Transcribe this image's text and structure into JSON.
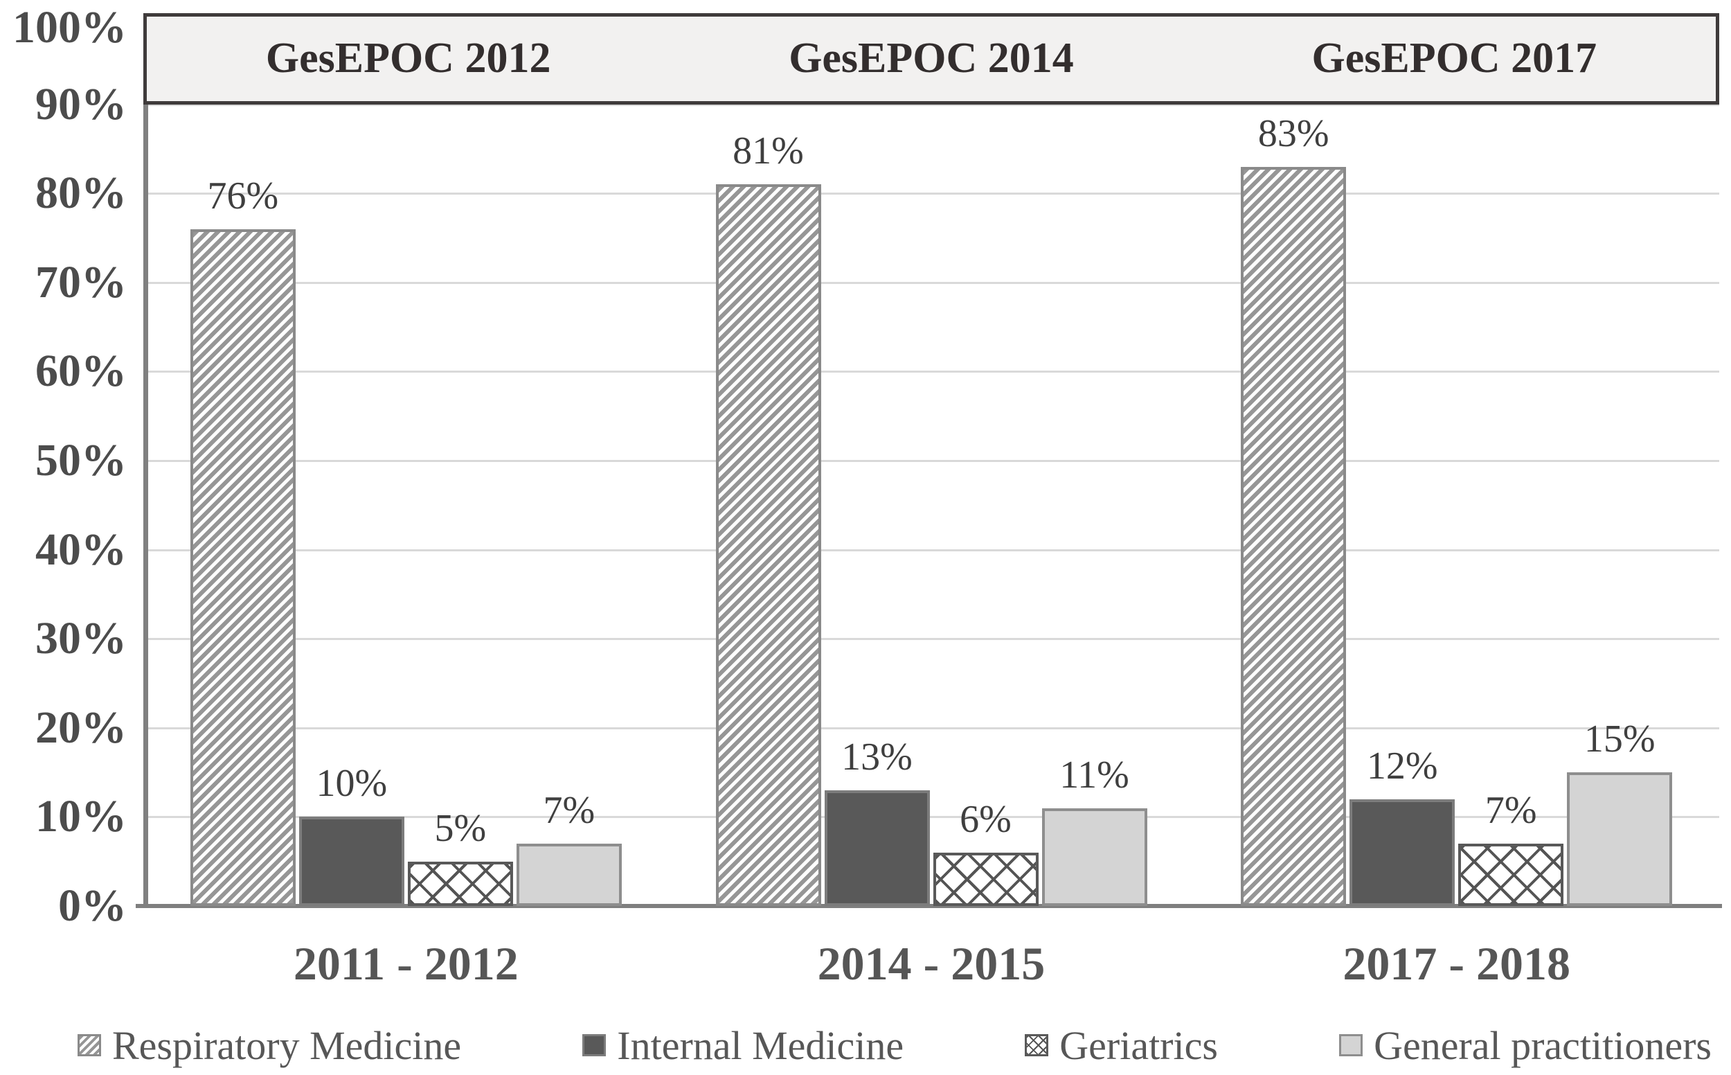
{
  "chart_data": {
    "type": "bar",
    "header_bands": [
      "GesEPOC 2012",
      "GesEPOC 2014",
      "GesEPOC 2017"
    ],
    "categories": [
      "2011 - 2012",
      "2014 - 2015",
      "2017 - 2018"
    ],
    "series": [
      {
        "name": "Respiratory Medicine",
        "pattern": "diagonal-hatch",
        "values": [
          76,
          81,
          83
        ],
        "labels": [
          "76%",
          "81%",
          "83%"
        ]
      },
      {
        "name": "Internal Medicine",
        "pattern": "solid-dark",
        "values": [
          10,
          13,
          12
        ],
        "labels": [
          "10%",
          "13%",
          "12%"
        ]
      },
      {
        "name": "Geriatrics",
        "pattern": "cross-hatch",
        "values": [
          5,
          6,
          7
        ],
        "labels": [
          "5%",
          "6%",
          "7%"
        ]
      },
      {
        "name": "General practitioners",
        "pattern": "solid-light",
        "values": [
          7,
          11,
          15
        ],
        "labels": [
          "7%",
          "11%",
          "15%"
        ]
      }
    ],
    "y_axis": {
      "min": 0,
      "max": 100,
      "grid": true,
      "ticks": [
        "0%",
        "10%",
        "20%",
        "30%",
        "40%",
        "50%",
        "60%",
        "70%",
        "80%",
        "90%",
        "100%"
      ]
    },
    "legend_position": "bottom",
    "colors": {
      "band_background": "#f2f1f0",
      "band_border": "#3f3b3b",
      "dark_bar": "#595959",
      "light_bar": "#d4d4d4",
      "hatch_gray": "#969696",
      "gridline": "#d9d9d9",
      "axis": "#808080",
      "text": "#4c4c4c"
    }
  }
}
